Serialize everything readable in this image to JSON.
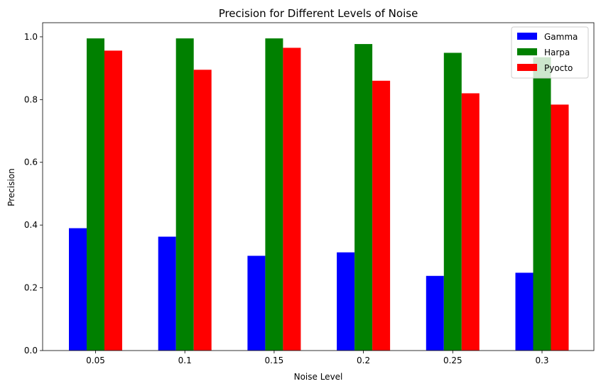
{
  "chart_data": {
    "type": "bar",
    "title": "Precision for Different Levels of Noise",
    "xlabel": "Noise Level",
    "ylabel": "Precision",
    "categories": [
      "0.05",
      "0.1",
      "0.15",
      "0.2",
      "0.25",
      "0.3"
    ],
    "series": [
      {
        "name": "Gamma",
        "color": "#0000ff",
        "values": [
          0.39,
          0.363,
          0.302,
          0.313,
          0.238,
          0.248
        ]
      },
      {
        "name": "Harpa",
        "color": "#008000",
        "values": [
          0.995,
          0.995,
          0.995,
          0.977,
          0.949,
          0.935
        ]
      },
      {
        "name": "Pyocto",
        "color": "#ff0000",
        "values": [
          0.956,
          0.895,
          0.965,
          0.86,
          0.82,
          0.784
        ]
      }
    ],
    "ylim": [
      0,
      1.045
    ],
    "yticks": [
      0.0,
      0.2,
      0.4,
      0.6,
      0.8,
      1.0
    ],
    "ytick_labels": [
      "0.0",
      "0.2",
      "0.4",
      "0.6",
      "0.8",
      "1.0"
    ],
    "grid": false,
    "legend_position": "upper right"
  }
}
